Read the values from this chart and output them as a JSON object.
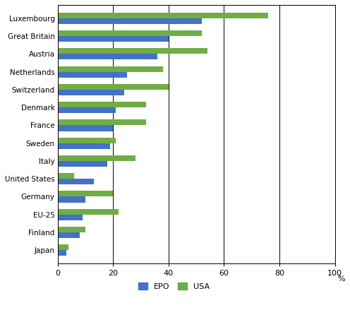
{
  "categories": [
    "Luxembourg",
    "Great Britain",
    "Austria",
    "Netherlands",
    "Switzerland",
    "Denmark",
    "France",
    "Sweden",
    "Italy",
    "United States",
    "Germany",
    "EU-25",
    "Finland",
    "Japan"
  ],
  "epo_values": [
    52,
    40,
    36,
    25,
    24,
    21,
    20,
    19,
    18,
    13,
    10,
    9,
    8,
    3
  ],
  "usa_values": [
    76,
    52,
    54,
    38,
    40,
    32,
    32,
    21,
    28,
    6,
    20,
    22,
    10,
    4
  ],
  "epo_color": "#4472C4",
  "usa_color": "#70AD47",
  "xlim": [
    0,
    100
  ],
  "xticks": [
    0,
    20,
    40,
    60,
    80,
    100
  ],
  "xlabel": "%",
  "legend_labels": [
    "EPO",
    "USA"
  ],
  "bar_height": 0.32,
  "background_color": "#ffffff",
  "grid_color": "#000000",
  "figsize": [
    4.96,
    4.46
  ],
  "dpi": 100
}
